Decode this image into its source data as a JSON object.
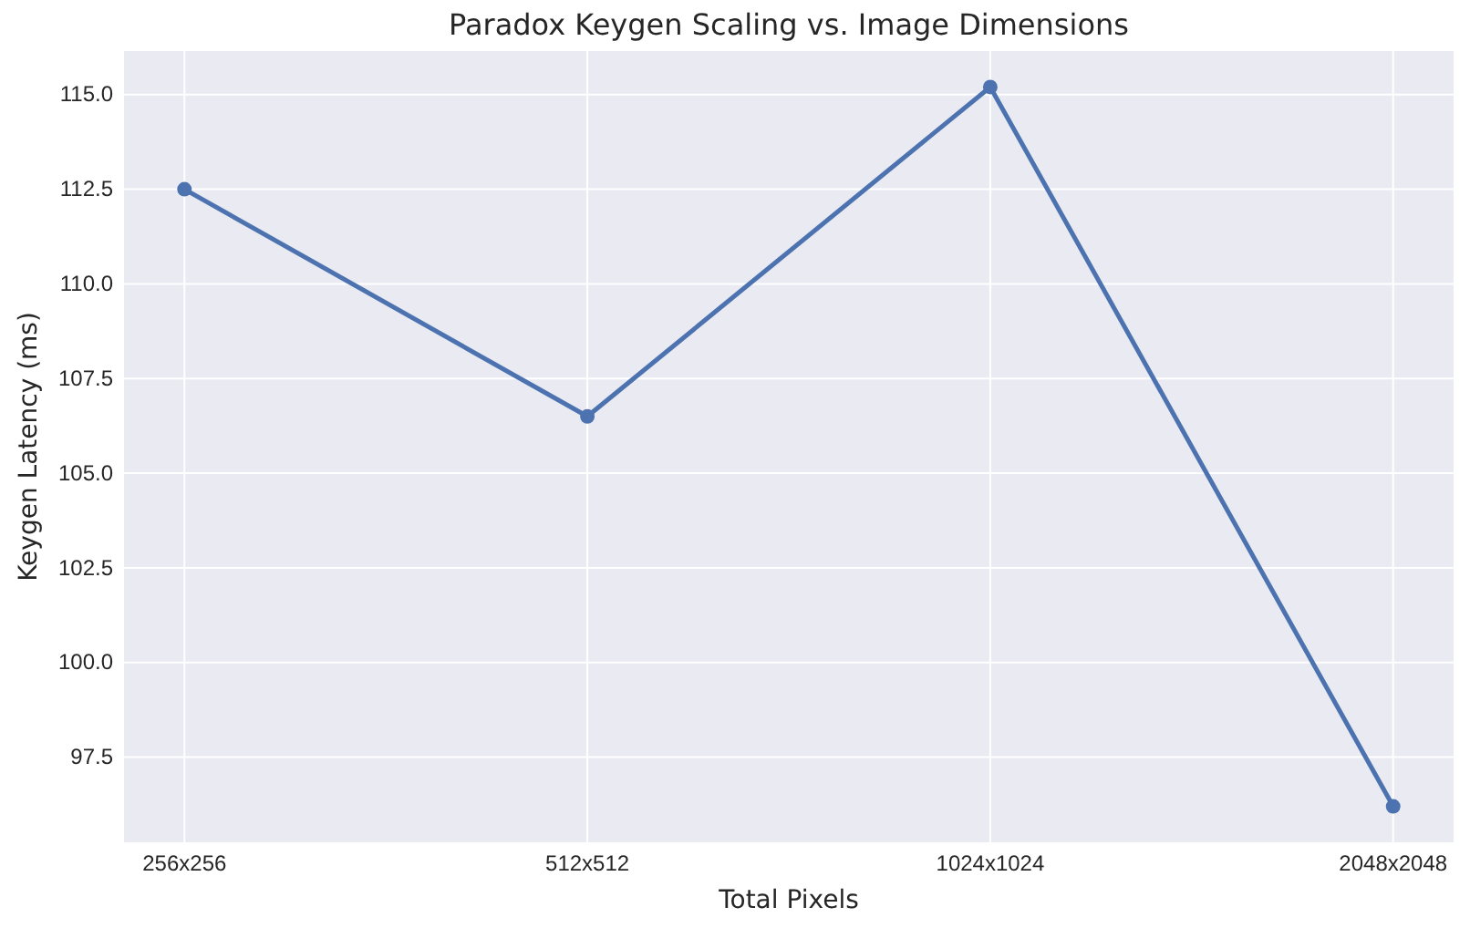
{
  "chart_data": {
    "type": "line",
    "title": "Paradox Keygen Scaling vs. Image Dimensions",
    "xlabel": "Total Pixels",
    "ylabel": "Keygen Latency (ms)",
    "categories": [
      "256x256",
      "512x512",
      "1024x1024",
      "2048x2048"
    ],
    "series": [
      {
        "color": "#4c72b0",
        "values": [
          112.5,
          106.5,
          115.2,
          96.2
        ]
      }
    ],
    "ylim": [
      95.25,
      116.15
    ],
    "yticks": [
      {
        "value": 97.5,
        "label": "97.5"
      },
      {
        "value": 100,
        "label": "100.0"
      },
      {
        "value": 102.5,
        "label": "102.5"
      },
      {
        "value": 105,
        "label": "105.0"
      },
      {
        "value": 107.5,
        "label": "107.5"
      },
      {
        "value": 110,
        "label": "110.0"
      },
      {
        "value": 112.5,
        "label": "112.5"
      },
      {
        "value": 115,
        "label": "115.0"
      }
    ],
    "grid": true,
    "marker": "circle",
    "line_style": "solid"
  }
}
